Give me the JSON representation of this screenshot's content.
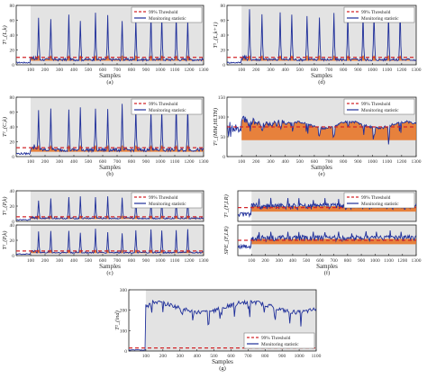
{
  "figure": {
    "colors": {
      "stat": "#1f2f9a",
      "fill": "#e8701f",
      "threshold": "#d2262a",
      "shade": "#e3e3e3",
      "axis": "#222222"
    },
    "legend": {
      "threshold": "99% Threshold",
      "statistic": "Monitoring statistic"
    },
    "common_xlabel": "Samples",
    "spike_positions": [
      155,
      240,
      365,
      445,
      550,
      635,
      735,
      830,
      935,
      1010,
      1110,
      1190
    ]
  },
  "chart_data": [
    {
      "id": "a",
      "caption": "(a)",
      "type": "line",
      "ylabel": "T²_(L,k)",
      "xlabel": "Samples",
      "xlim": [
        0,
        1300
      ],
      "ylim": [
        0,
        80
      ],
      "yticks": [
        0,
        20,
        40,
        60,
        80
      ],
      "xticks": [
        100,
        200,
        300,
        400,
        500,
        600,
        700,
        800,
        900,
        1000,
        1100,
        1200,
        1300
      ],
      "threshold": 10,
      "fault_start": 100,
      "baseline": 3,
      "after": 7,
      "spike": 64,
      "style": "spikes",
      "fill": true,
      "grid": false,
      "legend_position": "top-right"
    },
    {
      "id": "d",
      "caption": "(d)",
      "type": "line",
      "ylabel": "T²_(L,k+1)",
      "xlabel": "Samples",
      "xlim": [
        0,
        1300
      ],
      "ylim": [
        0,
        80
      ],
      "yticks": [
        0,
        20,
        40,
        60,
        80
      ],
      "xticks": [
        100,
        200,
        300,
        400,
        500,
        600,
        700,
        800,
        900,
        1000,
        1100,
        1200,
        1300
      ],
      "threshold": 10,
      "fault_start": 100,
      "baseline": 3,
      "after": 7,
      "spike": 70,
      "style": "spikes",
      "fill": true,
      "grid": false,
      "legend_position": "top-right"
    },
    {
      "id": "b",
      "caption": "(b)",
      "type": "line",
      "ylabel": "T²_(C,k)",
      "xlabel": "Samples",
      "xlim": [
        0,
        1300
      ],
      "ylim": [
        0,
        80
      ],
      "yticks": [
        0,
        20,
        40,
        60,
        80
      ],
      "xticks": [
        100,
        200,
        300,
        400,
        500,
        600,
        700,
        800,
        900,
        1000,
        1100,
        1200,
        1300
      ],
      "threshold": 12,
      "fault_start": 100,
      "baseline": 4,
      "after": 9,
      "spike": 66,
      "style": "spikes",
      "fill": true,
      "grid": false,
      "legend_position": "top-right"
    },
    {
      "id": "e",
      "caption": "(e)",
      "type": "line",
      "ylabel": "T²_(MM,HLTH)",
      "xlabel": "Samples",
      "xlim": [
        0,
        1300
      ],
      "ylim": [
        0,
        150
      ],
      "yticks": [
        0,
        50,
        100,
        150
      ],
      "xticks": [
        100,
        200,
        300,
        400,
        500,
        600,
        700,
        800,
        900,
        1000,
        1100,
        1200,
        1300
      ],
      "threshold": 75,
      "fault_start": 100,
      "baseline": 70,
      "after": 80,
      "spike": 95,
      "style": "wavy",
      "fill": true,
      "grid": false,
      "legend_position": "top-right"
    },
    {
      "id": "c1",
      "caption": "",
      "type": "line",
      "ylabel": "T²_(P,k)",
      "xlabel": "",
      "xlim": [
        0,
        1300
      ],
      "ylim": [
        0,
        40
      ],
      "yticks": [
        0,
        20,
        40
      ],
      "xticks": [],
      "threshold": 6,
      "fault_start": 100,
      "baseline": 2,
      "after": 4,
      "spike": 30,
      "style": "spikes",
      "fill": true,
      "grid": false,
      "legend_position": "top-right"
    },
    {
      "id": "c2",
      "caption": "(c)",
      "type": "line",
      "ylabel": "T²_(P,k)",
      "xlabel": "Samples",
      "xlim": [
        0,
        1300
      ],
      "ylim": [
        0,
        40
      ],
      "yticks": [
        0,
        20,
        40
      ],
      "xticks": [
        100,
        200,
        300,
        400,
        500,
        600,
        700,
        800,
        900,
        1000,
        1100,
        1200,
        1300
      ],
      "threshold": 6,
      "fault_start": 100,
      "baseline": 2,
      "after": 4,
      "spike": 32,
      "style": "spikes",
      "fill": true,
      "grid": false,
      "legend_position": "none"
    },
    {
      "id": "f1",
      "caption": "",
      "type": "line",
      "ylabel": "T²_(F,LR)",
      "xlabel": "",
      "xlim": [
        0,
        1300
      ],
      "ylim": [
        1,
        100
      ],
      "yticks": [],
      "xticks": [],
      "threshold": 8,
      "fault_start": 100,
      "baseline": 3,
      "after": 10,
      "spike": 40,
      "style": "noisy",
      "fill": true,
      "grid": false,
      "legend_position": "top-right"
    },
    {
      "id": "f2",
      "caption": "(f)",
      "type": "line",
      "ylabel": "SPE_(F,LR)",
      "xlabel": "Samples",
      "xlim": [
        0,
        1300
      ],
      "ylim": [
        1,
        100
      ],
      "yticks": [],
      "xticks": [
        100,
        200,
        300,
        400,
        500,
        600,
        700,
        800,
        900,
        1000,
        1100,
        1200,
        1300
      ],
      "threshold": 10,
      "fault_start": 100,
      "baseline": 4,
      "after": 14,
      "spike": 45,
      "style": "noisy",
      "fill": true,
      "grid": false,
      "legend_position": "none"
    },
    {
      "id": "g",
      "caption": "(g)",
      "type": "line",
      "ylabel": "T²_(ind)",
      "xlabel": "Samples",
      "xlim": [
        0,
        1100
      ],
      "ylim": [
        0,
        300
      ],
      "yticks": [
        0,
        100,
        200,
        300
      ],
      "xticks": [
        100,
        200,
        300,
        400,
        500,
        600,
        700,
        800,
        900,
        1000,
        1100
      ],
      "threshold": 15,
      "fault_start": 100,
      "baseline": 5,
      "after": 215,
      "spike": 260,
      "style": "high",
      "fill": false,
      "grid": false,
      "legend_position": "bottom-right"
    }
  ]
}
